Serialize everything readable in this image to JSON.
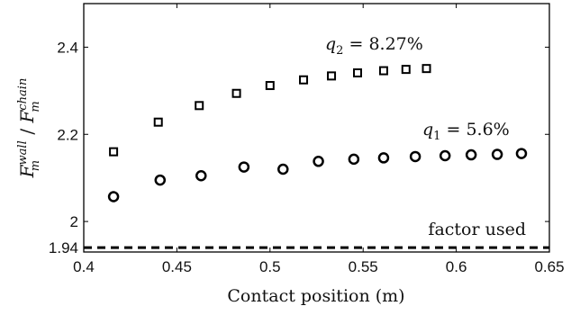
{
  "chart_data": {
    "type": "scatter",
    "xlabel": "Contact position (m)",
    "ylabel": {
      "base": "F",
      "sup_num": "wall",
      "sub": "m",
      "slash": " / ",
      "sup_den": "chain"
    },
    "xlim": [
      0.4,
      0.65
    ],
    "ylim": [
      1.93,
      2.5
    ],
    "xticks": [
      "0.4",
      "0.45",
      "0.5",
      "0.55",
      "0.6",
      "0.65"
    ],
    "yticks": [
      "1.94",
      "2",
      "2.2",
      "2.4"
    ],
    "grid": false,
    "series": [
      {
        "name": "q2 = 8.27%",
        "label_var": "q",
        "label_sub": "2",
        "label_rest": " = 8.27%",
        "marker": "square",
        "x": [
          0.416,
          0.44,
          0.462,
          0.482,
          0.5,
          0.518,
          0.533,
          0.547,
          0.561,
          0.573,
          0.584
        ],
        "y": [
          2.16,
          2.228,
          2.266,
          2.294,
          2.312,
          2.325,
          2.334,
          2.341,
          2.346,
          2.349,
          2.351
        ]
      },
      {
        "name": "q1 = 5.6%",
        "label_var": "q",
        "label_sub": "1",
        "label_rest": " = 5.6%",
        "marker": "circle",
        "x": [
          0.416,
          0.441,
          0.463,
          0.486,
          0.507,
          0.526,
          0.545,
          0.561,
          0.578,
          0.594,
          0.608,
          0.622,
          0.635
        ],
        "y": [
          2.057,
          2.095,
          2.105,
          2.125,
          2.12,
          2.138,
          2.143,
          2.146,
          2.149,
          2.151,
          2.153,
          2.154,
          2.156
        ]
      }
    ],
    "reference_line": {
      "y": 1.94,
      "label": "factor used",
      "style": "dashed"
    }
  }
}
